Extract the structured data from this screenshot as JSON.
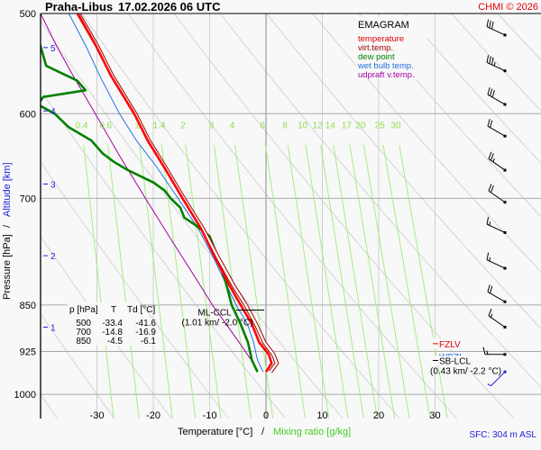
{
  "header": {
    "station": "Praha-Libus",
    "datetime": "17.02.2026 06 UTC",
    "copyright": "CHMI © 2026"
  },
  "footer": {
    "sfc": "SFC: 304 m ASL"
  },
  "colors": {
    "temperature": "#ff0000",
    "virt_temp": "#a00000",
    "dew_point": "#008000",
    "wet_bulb": "#2070e0",
    "updraft": "#a000a0",
    "mixing_ratio": "#90e060",
    "altitude": "#2020e0",
    "title_red": "#e00000"
  },
  "chart_data": {
    "type": "line",
    "title": "EMAGRAM",
    "xlabel": "Temperature [°C]",
    "xlabel2": "Mixing ratio [g/kg]",
    "ylabel": "Pressure [hPa]",
    "ylabel2": "Altitude [km]",
    "xlim": [
      -37,
      47
    ],
    "ylim": [
      1000,
      500
    ],
    "x_ticks": [
      -30,
      -20,
      -10,
      0,
      10,
      20,
      30
    ],
    "y_ticks": [
      500,
      600,
      700,
      850,
      925,
      1000
    ],
    "altitude_ticks": [
      {
        "km": "5",
        "p": 532
      },
      {
        "km": "4",
        "p": 597
      },
      {
        "km": "3",
        "p": 682
      },
      {
        "km": "2",
        "p": 777
      },
      {
        "km": "1",
        "p": 885
      }
    ],
    "mixing_ratio_labels": [
      "0.4",
      "0.6",
      "1",
      "1.4",
      "2",
      "3",
      "4",
      "6",
      "8",
      "10",
      "12",
      "14",
      "17",
      "20",
      "25",
      "30"
    ],
    "legend": [
      "temperature",
      "virt.temp.",
      "dew point",
      "wet bulb temp.",
      "udpraft v.temp."
    ],
    "legend_position": "top-right",
    "series": [
      {
        "name": "temperature",
        "points": [
          [
            500,
            -33.4
          ],
          [
            530,
            -30.2
          ],
          [
            560,
            -27.5
          ],
          [
            600,
            -23.4
          ],
          [
            630,
            -21
          ],
          [
            660,
            -18.2
          ],
          [
            700,
            -14.8
          ],
          [
            740,
            -11.5
          ],
          [
            780,
            -9
          ],
          [
            820,
            -6.5
          ],
          [
            850,
            -4.5
          ],
          [
            880,
            -2.5
          ],
          [
            910,
            -1.2
          ],
          [
            930,
            0.5
          ],
          [
            945,
            1
          ],
          [
            960,
            0
          ]
        ]
      },
      {
        "name": "virt.temp.",
        "points": [
          [
            500,
            -33.3
          ],
          [
            530,
            -30
          ],
          [
            560,
            -27.3
          ],
          [
            600,
            -23.2
          ],
          [
            630,
            -20.8
          ],
          [
            660,
            -18
          ],
          [
            700,
            -14.6
          ],
          [
            740,
            -11.2
          ],
          [
            780,
            -8.5
          ],
          [
            820,
            -5.8
          ],
          [
            850,
            -3.6
          ],
          [
            880,
            -1.8
          ],
          [
            910,
            -0.3
          ],
          [
            930,
            1.3
          ],
          [
            945,
            1.9
          ],
          [
            960,
            0.8
          ]
        ]
      },
      {
        "name": "dew point",
        "points": [
          [
            500,
            -41.6
          ],
          [
            520,
            -40.6
          ],
          [
            550,
            -39
          ],
          [
            565,
            -33.5
          ],
          [
            575,
            -32
          ],
          [
            582,
            -39.5
          ],
          [
            590,
            -40.5
          ],
          [
            600,
            -37.5
          ],
          [
            615,
            -35
          ],
          [
            630,
            -31
          ],
          [
            645,
            -29
          ],
          [
            655,
            -27
          ],
          [
            665,
            -24.5
          ],
          [
            680,
            -20
          ],
          [
            690,
            -18
          ],
          [
            700,
            -16.9
          ],
          [
            712,
            -15.2
          ],
          [
            725,
            -14.5
          ],
          [
            735,
            -12.5
          ],
          [
            750,
            -10
          ],
          [
            780,
            -8.5
          ],
          [
            820,
            -7
          ],
          [
            850,
            -6.1
          ],
          [
            880,
            -4.5
          ],
          [
            910,
            -3.2
          ],
          [
            940,
            -2.5
          ],
          [
            960,
            -1.5
          ]
        ]
      },
      {
        "name": "wet bulb temp.",
        "points": [
          [
            500,
            -35
          ],
          [
            530,
            -32
          ],
          [
            560,
            -29.5
          ],
          [
            600,
            -26
          ],
          [
            630,
            -23
          ],
          [
            660,
            -19.5
          ],
          [
            700,
            -15.6
          ],
          [
            740,
            -12
          ],
          [
            780,
            -9.3
          ],
          [
            820,
            -7
          ],
          [
            850,
            -5.3
          ],
          [
            880,
            -3.3
          ],
          [
            910,
            -2.2
          ],
          [
            940,
            -1.5
          ],
          [
            960,
            -0.5
          ]
        ]
      },
      {
        "name": "udpraft v.temp.",
        "points": [
          [
            500,
            -40
          ],
          [
            530,
            -37.2
          ],
          [
            560,
            -34.2
          ],
          [
            600,
            -30.3
          ],
          [
            650,
            -25.8
          ],
          [
            700,
            -21.4
          ],
          [
            750,
            -17.2
          ],
          [
            800,
            -13.2
          ],
          [
            850,
            -9.5
          ],
          [
            900,
            -5.5
          ],
          [
            940,
            -2.6
          ],
          [
            960,
            -1.5
          ]
        ]
      }
    ],
    "annotations": {
      "ml_ccl": {
        "label": "ML-CCL",
        "detail": "(1.01 km/ -2.0 °C)",
        "p": 872
      },
      "fzlv": {
        "label": "FZLV",
        "p": 915
      },
      "wbzl": {
        "label": "WBZL",
        "p": 938
      },
      "sb_lcl": {
        "label": "SB-LCL",
        "detail": "(0.43 km/ -2.2 °C)",
        "p": 948
      }
    },
    "table": {
      "headers": [
        "p [hPa]",
        "T",
        "Td [°C]"
      ],
      "rows": [
        [
          "500",
          "-33.4",
          "-41.6"
        ],
        [
          "700",
          "-14.8",
          "-16.9"
        ],
        [
          "850",
          "-4.5",
          "-6.1"
        ]
      ]
    },
    "wind_barbs": [
      {
        "p": 520,
        "dir": 295,
        "speed_kt": 30
      },
      {
        "p": 555,
        "dir": 295,
        "speed_kt": 35
      },
      {
        "p": 590,
        "dir": 300,
        "speed_kt": 30
      },
      {
        "p": 625,
        "dir": 300,
        "speed_kt": 20
      },
      {
        "p": 665,
        "dir": 305,
        "speed_kt": 25
      },
      {
        "p": 705,
        "dir": 305,
        "speed_kt": 20
      },
      {
        "p": 745,
        "dir": 295,
        "speed_kt": 15
      },
      {
        "p": 795,
        "dir": 295,
        "speed_kt": 15
      },
      {
        "p": 845,
        "dir": 300,
        "speed_kt": 20
      },
      {
        "p": 885,
        "dir": 305,
        "speed_kt": 15
      },
      {
        "p": 930,
        "dir": 270,
        "speed_kt": 15
      },
      {
        "p": 960,
        "dir": 225,
        "speed_kt": 5
      }
    ]
  }
}
